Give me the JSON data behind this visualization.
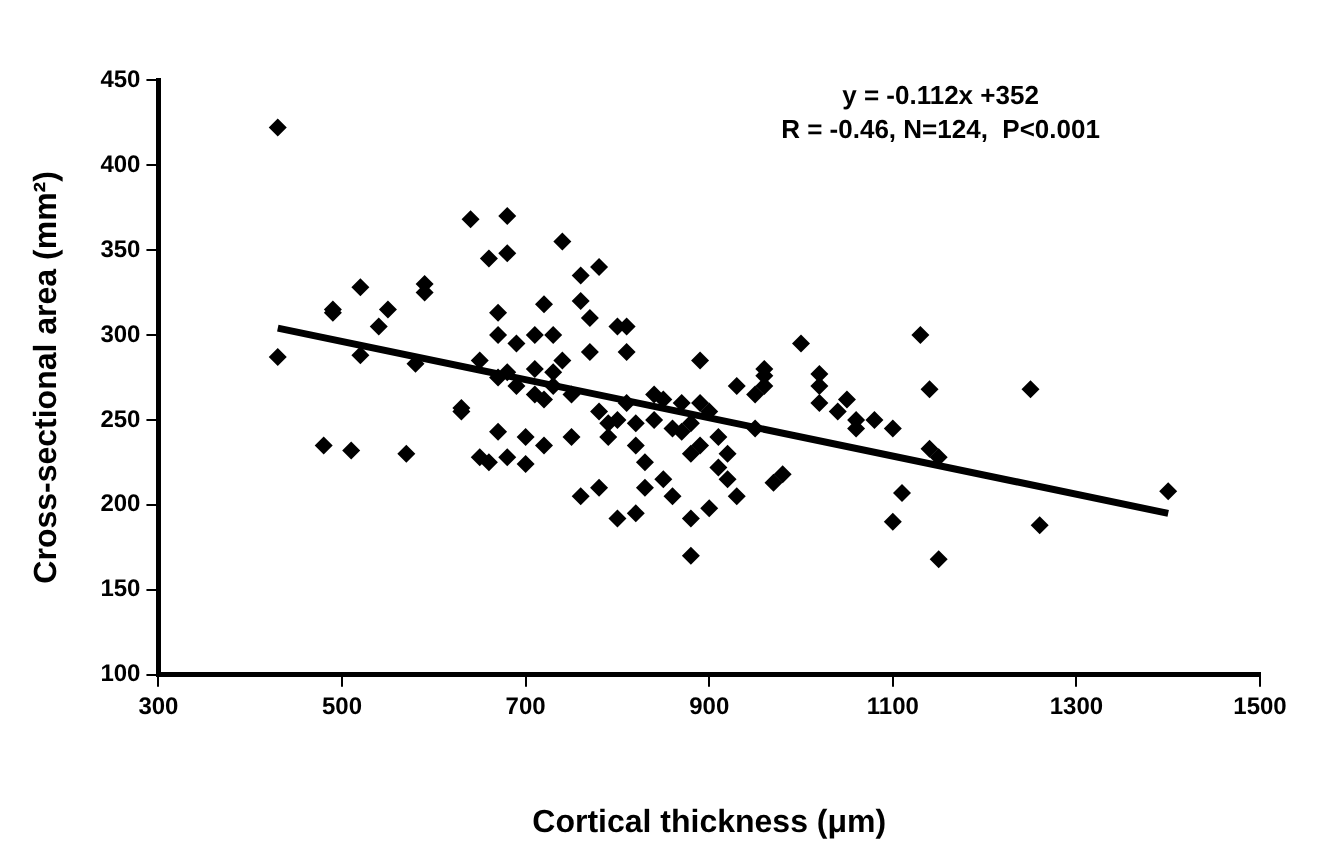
{
  "chart_data": {
    "type": "scatter",
    "xlabel": "Cortical thickness (μm)",
    "ylabel": "Cross-sectional area (mm²)",
    "annotations": [
      "y = -0.112x +352",
      "R = -0.46, N=124,  P<0.001"
    ],
    "xlim": [
      300,
      1500
    ],
    "xticks": [
      300,
      500,
      700,
      900,
      1100,
      1300,
      1500
    ],
    "ylim": [
      100,
      450
    ],
    "yticks": [
      100,
      150,
      200,
      250,
      300,
      350,
      400,
      450
    ],
    "grid": false,
    "legend": false,
    "marker": "diamond",
    "series": [
      {
        "color": "#000000",
        "x": [
          430,
          430,
          480,
          490,
          490,
          510,
          520,
          520,
          540,
          550,
          570,
          580,
          590,
          590,
          630,
          630,
          640,
          650,
          650,
          660,
          660,
          670,
          670,
          670,
          670,
          680,
          680,
          680,
          680,
          690,
          690,
          700,
          700,
          710,
          710,
          710,
          720,
          720,
          720,
          730,
          730,
          730,
          740,
          740,
          750,
          750,
          760,
          760,
          760,
          770,
          770,
          780,
          780,
          780,
          790,
          790,
          800,
          800,
          800,
          810,
          810,
          810,
          820,
          820,
          820,
          830,
          830,
          840,
          840,
          850,
          850,
          860,
          860,
          870,
          870,
          880,
          880,
          880,
          880,
          890,
          890,
          890,
          900,
          900,
          910,
          910,
          920,
          920,
          930,
          930,
          950,
          950,
          960,
          960,
          960,
          970,
          980,
          1000,
          1020,
          1020,
          1020,
          1040,
          1050,
          1060,
          1060,
          1080,
          1100,
          1100,
          1110,
          1130,
          1140,
          1140,
          1150,
          1150,
          1250,
          1260,
          1400
        ],
        "values": [
          422,
          287,
          235,
          315,
          313,
          232,
          328,
          288,
          305,
          315,
          230,
          283,
          325,
          330,
          257,
          255,
          368,
          228,
          285,
          345,
          225,
          300,
          313,
          243,
          275,
          370,
          348,
          278,
          228,
          295,
          270,
          224,
          240,
          280,
          300,
          265,
          235,
          262,
          318,
          300,
          270,
          278,
          355,
          285,
          240,
          265,
          205,
          335,
          320,
          310,
          290,
          340,
          255,
          210,
          240,
          248,
          250,
          192,
          305,
          305,
          290,
          260,
          195,
          248,
          235,
          225,
          210,
          265,
          250,
          215,
          262,
          205,
          245,
          260,
          243,
          170,
          230,
          248,
          192,
          285,
          260,
          235,
          198,
          255,
          222,
          240,
          215,
          230,
          270,
          205,
          265,
          245,
          270,
          276,
          280,
          213,
          218,
          295,
          260,
          270,
          277,
          255,
          262,
          250,
          245,
          250,
          245,
          190,
          207,
          300,
          268,
          233,
          228,
          168,
          268,
          188,
          208
        ]
      },
      {
        "type": "line",
        "color": "#000000",
        "marker": "none",
        "line_style": "solid",
        "x": [
          430,
          1400
        ],
        "values": [
          304,
          195
        ]
      }
    ]
  }
}
